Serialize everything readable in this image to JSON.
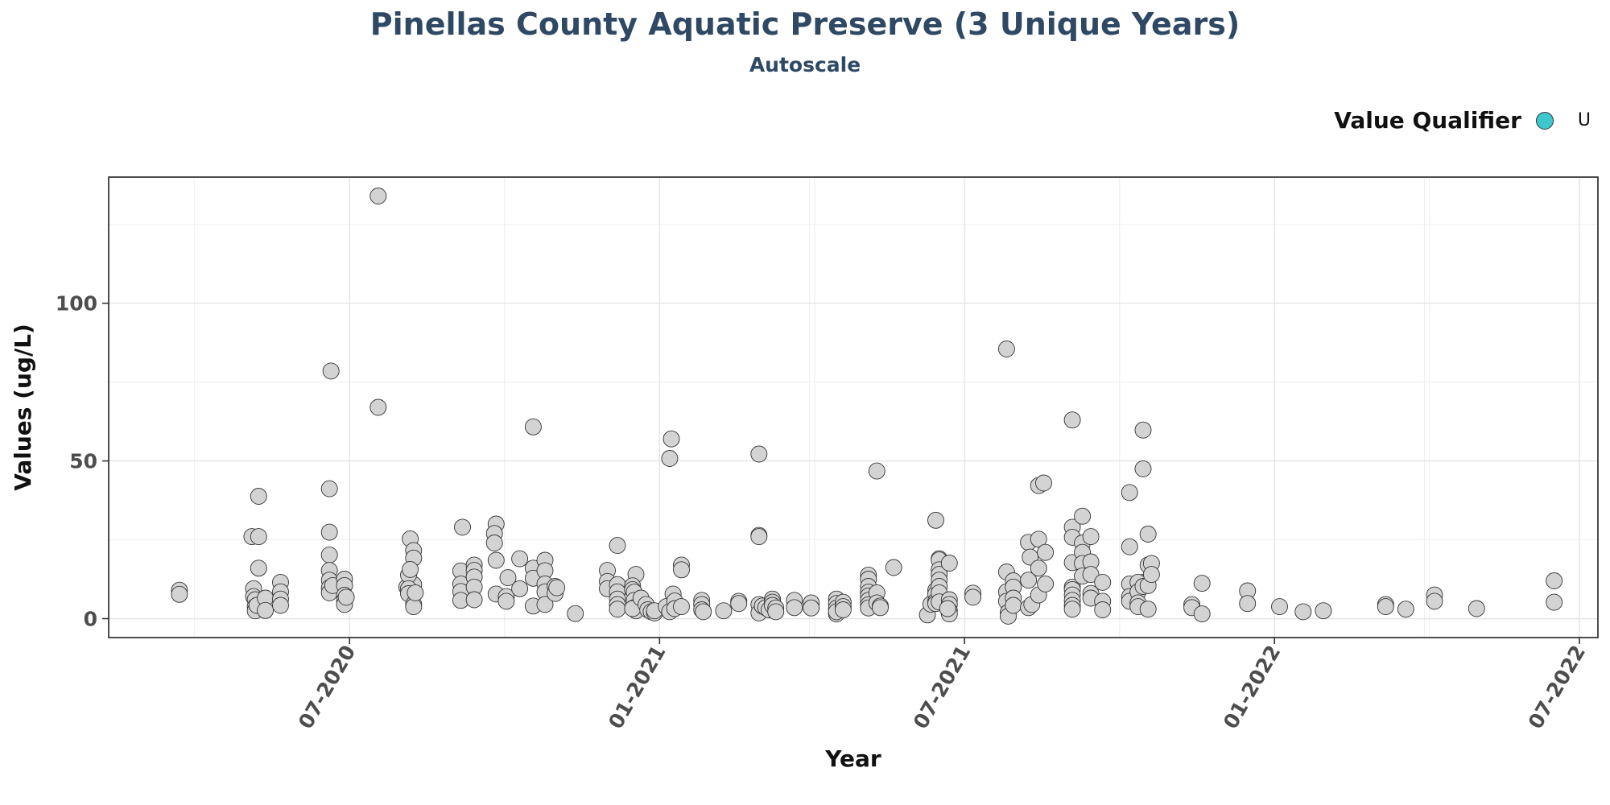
{
  "chart_data": {
    "type": "scatter",
    "title": "Pinellas County Aquatic Preserve (3 Unique Years)",
    "subtitle": "Autoscale",
    "xlabel": "Year",
    "ylabel": "Values (ug/L)",
    "x_ticks": [
      "2020-07-01",
      "2021-01-01",
      "2021-07-01",
      "2022-01-01",
      "2022-07-01"
    ],
    "x_tick_labels": [
      "07-2020",
      "01-2021",
      "07-2021",
      "01-2022",
      "07-2022"
    ],
    "x_range": [
      "2020-02-09",
      "2022-07-12"
    ],
    "y_ticks": [
      0,
      50,
      100
    ],
    "y_range": [
      -6,
      140
    ],
    "grid": true,
    "legend": {
      "title": "Value Qualifier",
      "entries": [
        {
          "label": "U",
          "color": "#3ec7cc"
        }
      ],
      "placement": "top-right"
    },
    "point_fill": "#d3d3d3",
    "point_stroke": "#333333",
    "series": [
      {
        "points": [
          [
            "2020-03-22",
            9
          ],
          [
            "2020-03-22",
            7.7
          ],
          [
            "2020-05-04",
            26
          ],
          [
            "2020-05-05",
            9.5
          ],
          [
            "2020-05-05",
            7
          ],
          [
            "2020-05-06",
            6
          ],
          [
            "2020-05-06",
            3.8
          ],
          [
            "2020-05-06",
            2.5
          ],
          [
            "2020-05-07",
            4.2
          ],
          [
            "2020-05-08",
            38.8
          ],
          [
            "2020-05-08",
            26
          ],
          [
            "2020-05-08",
            16
          ],
          [
            "2020-05-12",
            6.5
          ],
          [
            "2020-05-12",
            2.6
          ],
          [
            "2020-05-21",
            11.5
          ],
          [
            "2020-05-21",
            8.5
          ],
          [
            "2020-05-21",
            6.2
          ],
          [
            "2020-05-21",
            4.2
          ],
          [
            "2020-06-20",
            78.5
          ],
          [
            "2020-06-19",
            41.2
          ],
          [
            "2020-06-19",
            27.4
          ],
          [
            "2020-06-19",
            20.2
          ],
          [
            "2020-06-19",
            15.3
          ],
          [
            "2020-06-19",
            12.2
          ],
          [
            "2020-06-19",
            9.8
          ],
          [
            "2020-06-19",
            8.2
          ],
          [
            "2020-06-21",
            10.5
          ],
          [
            "2020-06-28",
            12.5
          ],
          [
            "2020-06-28",
            10.5
          ],
          [
            "2020-06-28",
            7.4
          ],
          [
            "2020-06-28",
            5.8
          ],
          [
            "2020-06-28",
            4.5
          ],
          [
            "2020-06-29",
            6.8
          ],
          [
            "2020-07-18",
            134
          ],
          [
            "2020-07-18",
            67
          ],
          [
            "2020-08-06",
            25.3
          ],
          [
            "2020-08-08",
            21.6
          ],
          [
            "2020-08-08",
            19.2
          ],
          [
            "2020-08-08",
            10.8
          ],
          [
            "2020-08-04",
            10
          ],
          [
            "2020-08-05",
            13.8
          ],
          [
            "2020-08-05",
            9.5
          ],
          [
            "2020-08-06",
            15.6
          ],
          [
            "2020-08-05",
            7.9
          ],
          [
            "2020-08-08",
            4.6
          ],
          [
            "2020-08-08",
            3.8
          ],
          [
            "2020-08-09",
            8.2
          ],
          [
            "2020-09-06",
            29
          ],
          [
            "2020-09-05",
            15.1
          ],
          [
            "2020-09-05",
            11
          ],
          [
            "2020-09-05",
            8.6
          ],
          [
            "2020-09-05",
            5.8
          ],
          [
            "2020-09-13",
            17
          ],
          [
            "2020-09-13",
            15.3
          ],
          [
            "2020-09-13",
            13.2
          ],
          [
            "2020-09-13",
            10
          ],
          [
            "2020-09-13",
            6
          ],
          [
            "2020-09-26",
            30
          ],
          [
            "2020-09-25",
            27
          ],
          [
            "2020-09-25",
            24
          ],
          [
            "2020-09-26",
            18.5
          ],
          [
            "2020-09-26",
            7.8
          ],
          [
            "2020-10-03",
            13
          ],
          [
            "2020-10-02",
            7
          ],
          [
            "2020-10-02",
            5.5
          ],
          [
            "2020-10-10",
            19
          ],
          [
            "2020-10-10",
            9.5
          ],
          [
            "2020-10-18",
            60.8
          ],
          [
            "2020-10-18",
            16
          ],
          [
            "2020-10-18",
            12.8
          ],
          [
            "2020-10-18",
            4
          ],
          [
            "2020-10-25",
            18.5
          ],
          [
            "2020-10-25",
            15.2
          ],
          [
            "2020-10-25",
            11
          ],
          [
            "2020-10-25",
            8.5
          ],
          [
            "2020-10-25",
            4.5
          ],
          [
            "2020-10-31",
            10.2
          ],
          [
            "2020-10-31",
            8
          ],
          [
            "2020-11-01",
            9.8
          ],
          [
            "2020-11-12",
            1.6
          ],
          [
            "2020-12-01",
            15.3
          ],
          [
            "2020-12-01",
            11.8
          ],
          [
            "2020-12-01",
            9.5
          ],
          [
            "2020-12-07",
            23.2
          ],
          [
            "2020-12-07",
            10.8
          ],
          [
            "2020-12-07",
            8.5
          ],
          [
            "2020-12-07",
            6.2
          ],
          [
            "2020-12-07",
            4.5
          ],
          [
            "2020-12-07",
            3
          ],
          [
            "2020-12-18",
            14
          ],
          [
            "2020-12-16",
            10.4
          ],
          [
            "2020-12-16",
            9.2
          ],
          [
            "2020-12-17",
            8.4
          ],
          [
            "2020-12-17",
            5.8
          ],
          [
            "2020-12-17",
            3.5
          ],
          [
            "2020-12-18",
            2.5
          ],
          [
            "2020-12-16",
            3.2
          ],
          [
            "2020-12-21",
            6.5
          ],
          [
            "2020-12-24",
            4.5
          ],
          [
            "2020-12-25",
            2.8
          ],
          [
            "2020-12-27",
            2.2
          ],
          [
            "2020-12-29",
            1.8
          ],
          [
            "2020-12-29",
            2.5
          ],
          [
            "2021-01-08",
            57
          ],
          [
            "2021-01-07",
            50.8
          ],
          [
            "2021-01-05",
            3.8
          ],
          [
            "2021-01-07",
            2.2
          ],
          [
            "2021-01-09",
            7.8
          ],
          [
            "2021-01-10",
            5.6
          ],
          [
            "2021-01-10",
            3.2
          ],
          [
            "2021-01-14",
            17
          ],
          [
            "2021-01-14",
            15.5
          ],
          [
            "2021-01-14",
            3.8
          ],
          [
            "2021-01-26",
            5.8
          ],
          [
            "2021-01-26",
            4.5
          ],
          [
            "2021-01-26",
            2.8
          ],
          [
            "2021-01-27",
            2.2
          ],
          [
            "2021-02-08",
            2.5
          ],
          [
            "2021-02-17",
            5.5
          ],
          [
            "2021-02-17",
            4.8
          ],
          [
            "2021-03-01",
            52.2
          ],
          [
            "2021-03-01",
            26.4
          ],
          [
            "2021-03-01",
            26
          ],
          [
            "2021-03-01",
            4.5
          ],
          [
            "2021-03-01",
            1.8
          ],
          [
            "2021-03-03",
            4
          ],
          [
            "2021-03-05",
            3.5
          ],
          [
            "2021-03-07",
            2.8
          ],
          [
            "2021-03-09",
            6.2
          ],
          [
            "2021-03-09",
            5.2
          ],
          [
            "2021-03-09",
            4.2
          ],
          [
            "2021-03-11",
            3.4
          ],
          [
            "2021-03-11",
            2.2
          ],
          [
            "2021-03-22",
            5.8
          ],
          [
            "2021-03-22",
            3.5
          ],
          [
            "2021-04-01",
            5
          ],
          [
            "2021-04-01",
            3.4
          ],
          [
            "2021-04-16",
            6.2
          ],
          [
            "2021-04-16",
            4.8
          ],
          [
            "2021-04-16",
            3.3
          ],
          [
            "2021-04-16",
            1.5
          ],
          [
            "2021-04-16",
            2.2
          ],
          [
            "2021-04-20",
            5.2
          ],
          [
            "2021-04-20",
            3.8
          ],
          [
            "2021-04-20",
            2.8
          ],
          [
            "2021-05-05",
            13.8
          ],
          [
            "2021-05-05",
            12.5
          ],
          [
            "2021-05-05",
            10.2
          ],
          [
            "2021-05-05",
            8.4
          ],
          [
            "2021-05-05",
            7.2
          ],
          [
            "2021-05-05",
            5.8
          ],
          [
            "2021-05-05",
            4.4
          ],
          [
            "2021-05-05",
            3.4
          ],
          [
            "2021-05-10",
            46.8
          ],
          [
            "2021-05-10",
            8.2
          ],
          [
            "2021-05-10",
            5
          ],
          [
            "2021-05-12",
            4
          ],
          [
            "2021-05-12",
            3.5
          ],
          [
            "2021-05-20",
            16.2
          ],
          [
            "2021-06-09",
            1.2
          ],
          [
            "2021-06-11",
            4.6
          ],
          [
            "2021-06-14",
            31.2
          ],
          [
            "2021-06-14",
            9
          ],
          [
            "2021-06-14",
            7.8
          ],
          [
            "2021-06-14",
            5.5
          ],
          [
            "2021-06-14",
            4.8
          ],
          [
            "2021-06-16",
            19
          ],
          [
            "2021-06-16",
            18.6
          ],
          [
            "2021-06-16",
            15.5
          ],
          [
            "2021-06-16",
            14
          ],
          [
            "2021-06-16",
            12.2
          ],
          [
            "2021-06-16",
            10.2
          ],
          [
            "2021-06-16",
            8.2
          ],
          [
            "2021-06-16",
            5.3
          ],
          [
            "2021-06-22",
            17.6
          ],
          [
            "2021-06-22",
            6
          ],
          [
            "2021-06-22",
            4.5
          ],
          [
            "2021-06-22",
            2.5
          ],
          [
            "2021-06-22",
            1.5
          ],
          [
            "2021-06-21",
            3.2
          ],
          [
            "2021-07-06",
            8.1
          ],
          [
            "2021-07-06",
            6.8
          ],
          [
            "2021-07-26",
            85.5
          ],
          [
            "2021-07-26",
            14.8
          ],
          [
            "2021-07-26",
            8.5
          ],
          [
            "2021-07-26",
            5.5
          ],
          [
            "2021-07-27",
            2
          ],
          [
            "2021-07-27",
            0.8
          ],
          [
            "2021-07-30",
            12
          ],
          [
            "2021-07-30",
            10
          ],
          [
            "2021-07-30",
            6.5
          ],
          [
            "2021-07-30",
            4.2
          ],
          [
            "2021-08-08",
            24.2
          ],
          [
            "2021-08-09",
            19.5
          ],
          [
            "2021-08-08",
            12.2
          ],
          [
            "2021-08-08",
            3.5
          ],
          [
            "2021-08-10",
            4.5
          ],
          [
            "2021-08-14",
            42.2
          ],
          [
            "2021-08-14",
            25.2
          ],
          [
            "2021-08-14",
            16
          ],
          [
            "2021-08-14",
            7.5
          ],
          [
            "2021-08-17",
            43
          ],
          [
            "2021-08-18",
            21
          ],
          [
            "2021-08-18",
            11
          ],
          [
            "2021-09-03",
            63
          ],
          [
            "2021-09-03",
            29
          ],
          [
            "2021-09-03",
            25.8
          ],
          [
            "2021-09-03",
            17.8
          ],
          [
            "2021-09-03",
            10
          ],
          [
            "2021-09-03",
            9.2
          ],
          [
            "2021-09-03",
            7.5
          ],
          [
            "2021-09-03",
            5.8
          ],
          [
            "2021-09-03",
            4.2
          ],
          [
            "2021-09-03",
            3
          ],
          [
            "2021-09-09",
            32.5
          ],
          [
            "2021-09-09",
            24
          ],
          [
            "2021-09-09",
            21
          ],
          [
            "2021-09-09",
            17.5
          ],
          [
            "2021-09-09",
            13.5
          ],
          [
            "2021-09-14",
            26
          ],
          [
            "2021-09-14",
            18
          ],
          [
            "2021-09-14",
            14
          ],
          [
            "2021-09-14",
            8
          ],
          [
            "2021-09-14",
            6.5
          ],
          [
            "2021-09-21",
            11.5
          ],
          [
            "2021-09-21",
            5.5
          ],
          [
            "2021-09-21",
            2.8
          ],
          [
            "2021-10-07",
            40
          ],
          [
            "2021-10-07",
            22.8
          ],
          [
            "2021-10-07",
            11
          ],
          [
            "2021-10-07",
            7
          ],
          [
            "2021-10-07",
            5.5
          ],
          [
            "2021-10-15",
            59.8
          ],
          [
            "2021-10-15",
            47.5
          ],
          [
            "2021-10-15",
            11.5
          ],
          [
            "2021-10-12",
            11.5
          ],
          [
            "2021-10-12",
            8.5
          ],
          [
            "2021-10-12",
            5
          ],
          [
            "2021-10-12",
            3.8
          ],
          [
            "2021-10-15",
            10.2
          ],
          [
            "2021-10-18",
            26.8
          ],
          [
            "2021-10-18",
            17
          ],
          [
            "2021-10-18",
            10.5
          ],
          [
            "2021-10-18",
            3
          ],
          [
            "2021-10-20",
            17.5
          ],
          [
            "2021-10-20",
            14
          ],
          [
            "2021-11-13",
            4.5
          ],
          [
            "2021-11-13",
            3.5
          ],
          [
            "2021-11-19",
            11.2
          ],
          [
            "2021-11-19",
            1.5
          ],
          [
            "2021-12-16",
            8.8
          ],
          [
            "2021-12-16",
            4.8
          ],
          [
            "2022-01-04",
            3.8
          ],
          [
            "2022-01-18",
            2.2
          ],
          [
            "2022-01-30",
            2.5
          ],
          [
            "2022-03-08",
            4.5
          ],
          [
            "2022-03-08",
            3.8
          ],
          [
            "2022-03-20",
            3
          ],
          [
            "2022-04-06",
            7.5
          ],
          [
            "2022-04-06",
            5.5
          ],
          [
            "2022-05-01",
            3.2
          ],
          [
            "2022-06-16",
            12
          ],
          [
            "2022-06-16",
            5.2
          ]
        ]
      }
    ]
  }
}
